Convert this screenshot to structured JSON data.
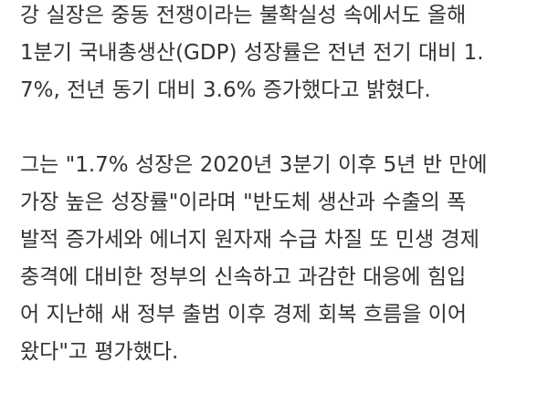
{
  "article": {
    "paragraphs": [
      {
        "lines": [
          "강 실장은 중동 전쟁이라는 불확실성 속에서도 올해",
          "1분기 국내총생산(GDP) 성장률은 전년 전기 대비 1.",
          "7%, 전년 동기 대비 3.6% 증가했다고 밝혔다."
        ]
      },
      {
        "lines": [
          "그는 \"1.7% 성장은 2020년 3분기 이후 5년 반 만에",
          "가장 높은 성장률\"이라며 \"반도체 생산과 수출의 폭",
          "발적 증가세와 에너지 원자재 수급 차질 또 민생 경제",
          "충격에 대비한 정부의 신속하고 과감한 대응에 힘입",
          "어 지난해 새 정부 출범 이후 경제 회복 흐름을 이어",
          "왔다\"고 평가했다."
        ]
      }
    ]
  }
}
